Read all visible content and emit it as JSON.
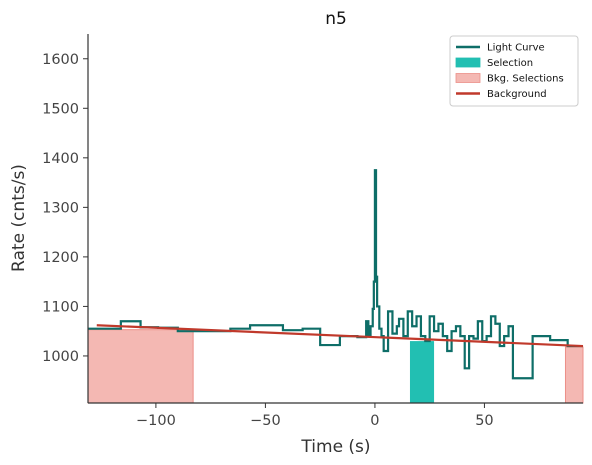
{
  "chart_data": {
    "type": "line",
    "title": "n5",
    "xlabel": "Time (s)",
    "ylabel": "Rate (cnts/s)",
    "xlim": [
      -131,
      95
    ],
    "ylim": [
      905,
      1650
    ],
    "xticks": [
      -100,
      -50,
      0,
      50
    ],
    "xtick_labels": [
      "−100",
      "−50",
      "0",
      "50"
    ],
    "yticks": [
      1000,
      1100,
      1200,
      1300,
      1400,
      1500,
      1600
    ],
    "grid": false,
    "legend_position": "top-right",
    "legend": [
      {
        "label": "Light Curve",
        "kind": "line",
        "color": "#0e6e68"
      },
      {
        "label": "Selection",
        "kind": "patch",
        "color": "#22bfb2"
      },
      {
        "label": "Bkg. Selections",
        "kind": "patch",
        "color": "#f4b8b3"
      },
      {
        "label": "Background",
        "kind": "line",
        "color": "#c0392b"
      }
    ],
    "series": [
      {
        "name": "Light Curve",
        "color": "#0e6e68",
        "step": true,
        "x": [
          -131,
          -123,
          -116,
          -107,
          -99,
          -90,
          -82,
          -66,
          -57,
          -42,
          -33,
          -25,
          -16,
          -8,
          -4,
          -3,
          -2,
          -1,
          -0.5,
          0,
          0.5,
          1,
          2,
          3,
          4,
          6,
          8,
          10,
          11,
          13,
          15,
          17,
          19,
          21,
          23,
          25,
          27,
          29,
          31,
          33,
          35,
          37,
          39,
          41,
          43,
          45,
          47,
          49,
          51,
          53,
          55,
          57,
          59,
          61,
          63,
          72,
          80,
          88,
          95
        ],
        "y": [
          1055,
          1055,
          1070,
          1058,
          1057,
          1050,
          1050,
          1055,
          1062,
          1052,
          1055,
          1022,
          1040,
          1038,
          1070,
          1040,
          1060,
          1095,
          1150,
          1375,
          1160,
          1100,
          1055,
          1040,
          1010,
          1090,
          1045,
          1060,
          1075,
          1040,
          1090,
          1060,
          1080,
          1040,
          1030,
          1080,
          1050,
          1065,
          1040,
          1010,
          1050,
          1060,
          1040,
          975,
          1040,
          1035,
          1070,
          1030,
          1040,
          1080,
          1065,
          1020,
          1040,
          1060,
          955,
          1040,
          1032,
          1020,
          1020
        ]
      },
      {
        "name": "Background",
        "color": "#c0392b",
        "x": [
          -127,
          95
        ],
        "y": [
          1062,
          1020
        ]
      }
    ],
    "selections": [
      {
        "name": "Selection",
        "color": "#22bfb2",
        "x_range": [
          16,
          27
        ],
        "top": 1030
      }
    ],
    "bkg_selections": [
      {
        "color": "#f4b8b3",
        "x_range": [
          -131,
          -83
        ],
        "top": 1053
      },
      {
        "color": "#f4b8b3",
        "x_range": [
          87,
          95
        ],
        "top": 1018
      }
    ]
  }
}
